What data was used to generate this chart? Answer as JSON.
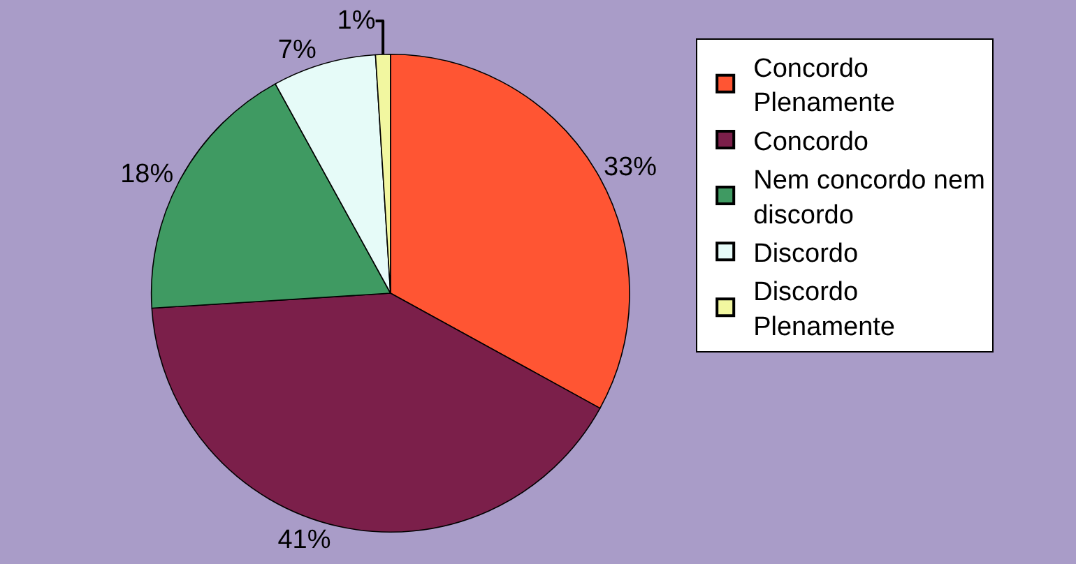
{
  "chart_data": {
    "type": "pie",
    "categories": [
      "Concordo Plenamente",
      "Concordo",
      "Nem concordo nem discordo",
      "Discordo",
      "Discordo Plenamente"
    ],
    "values": [
      33,
      41,
      18,
      7,
      1
    ],
    "colors": [
      "#ff5533",
      "#7b1f4a",
      "#3f9a62",
      "#e6fbf8",
      "#f2f7a0"
    ],
    "value_labels": [
      "33%",
      "41%",
      "18%",
      "7%",
      "1%"
    ],
    "legend": "right"
  }
}
